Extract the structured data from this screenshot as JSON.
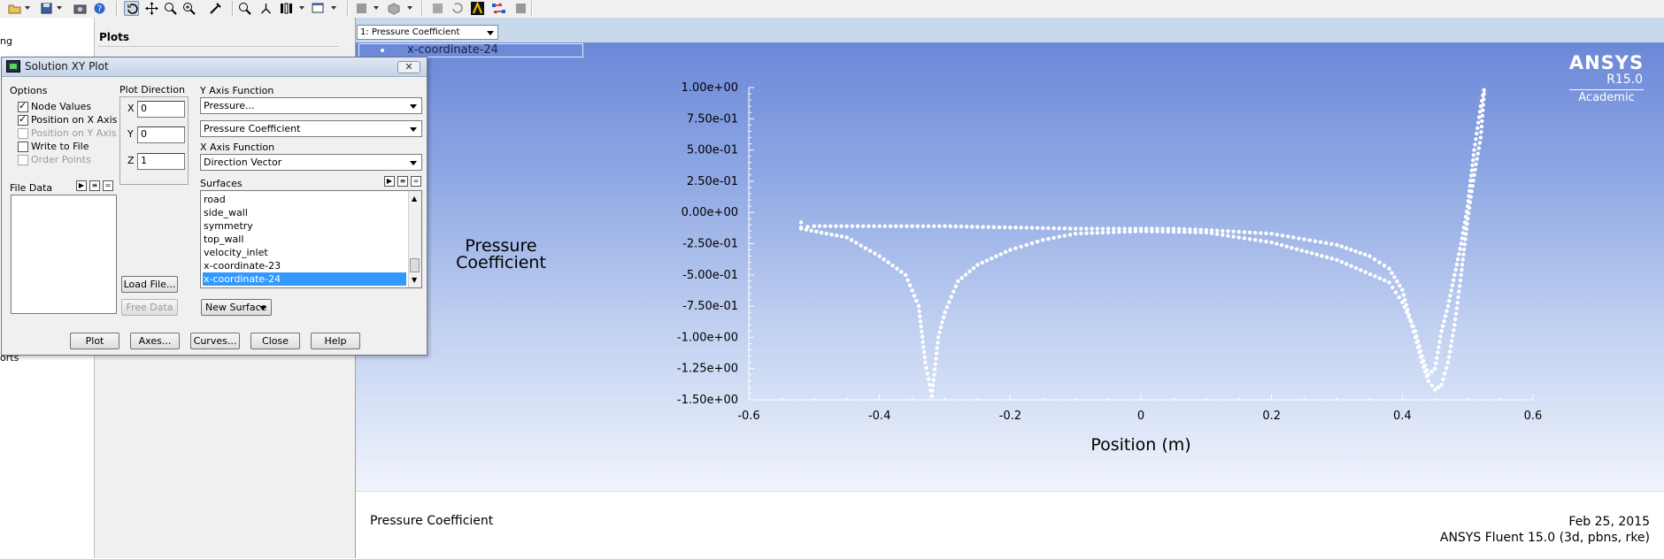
{
  "toolbar": {
    "icons": [
      "open-icon",
      "save-icon",
      "snapshot-icon",
      "help-icon",
      "rotate-icon",
      "translate-icon",
      "zoom-icon",
      "zoom-box-icon",
      "probe-icon",
      "zoom-fit-icon",
      "views-icon",
      "layout-icon",
      "window-icon",
      "mesh-display-icon",
      "surface-icon",
      "fluent-logo-icon",
      "sync-icon",
      "stop-icon"
    ]
  },
  "plots_panel": {
    "title": "Plots"
  },
  "left_strip": {
    "fragment_top": "ng",
    "fragment_bottom": "orts"
  },
  "graphics": {
    "window_selector": "1: Pressure Coefficient",
    "legend_label": "x-coordinate-24",
    "logo": {
      "brand": "ANSYS",
      "version": "R15.0",
      "edition": "Academic"
    },
    "footer_left": "Pressure Coefficient",
    "footer_date": "Feb 25, 2015",
    "footer_solver": "ANSYS Fluent 15.0 (3d, pbns, rke)"
  },
  "chart_data": {
    "type": "scatter",
    "xlabel": "Position (m)",
    "ylabel": "Pressure Coefficient",
    "xlim": [
      -0.6,
      0.6
    ],
    "ylim": [
      -1.5,
      1.0
    ],
    "x_ticks": [
      "-0.6",
      "-0.4",
      "-0.2",
      "0",
      "0.2",
      "0.4",
      "0.6"
    ],
    "y_ticks": [
      "1.00e+00",
      "7.50e-01",
      "5.00e-01",
      "2.50e-01",
      "0.00e+00",
      "-2.50e-01",
      "-5.00e-01",
      "-7.50e-01",
      "-1.00e+00",
      "-1.25e+00",
      "-1.50e+00"
    ],
    "series": [
      {
        "points": [
          [
            -0.52,
            -0.08
          ],
          [
            -0.52,
            -0.12
          ],
          [
            -0.5,
            -0.11
          ],
          [
            -0.45,
            -0.11
          ],
          [
            -0.4,
            -0.11
          ],
          [
            -0.35,
            -0.11
          ],
          [
            -0.3,
            -0.11
          ],
          [
            -0.2,
            -0.12
          ],
          [
            -0.1,
            -0.13
          ],
          [
            0,
            -0.13
          ],
          [
            0.05,
            -0.13
          ],
          [
            0.1,
            -0.14
          ],
          [
            0.2,
            -0.17
          ],
          [
            0.3,
            -0.26
          ],
          [
            0.35,
            -0.35
          ],
          [
            0.38,
            -0.45
          ],
          [
            0.4,
            -0.62
          ],
          [
            0.41,
            -0.82
          ],
          [
            0.42,
            -1.0
          ],
          [
            0.43,
            -1.2
          ],
          [
            0.44,
            -1.35
          ],
          [
            0.45,
            -1.42
          ],
          [
            0.46,
            -1.38
          ],
          [
            0.47,
            -1.2
          ],
          [
            0.48,
            -0.9
          ],
          [
            0.49,
            -0.5
          ],
          [
            0.5,
            -0.05
          ],
          [
            0.51,
            0.3
          ],
          [
            0.52,
            0.6
          ],
          [
            0.525,
            0.95
          ]
        ]
      },
      {
        "points": [
          [
            -0.52,
            -0.13
          ],
          [
            -0.45,
            -0.2
          ],
          [
            -0.4,
            -0.35
          ],
          [
            -0.36,
            -0.5
          ],
          [
            -0.34,
            -0.75
          ],
          [
            -0.33,
            -1.2
          ],
          [
            -0.32,
            -1.47
          ],
          [
            -0.31,
            -1.0
          ],
          [
            -0.3,
            -0.8
          ],
          [
            -0.28,
            -0.55
          ],
          [
            -0.25,
            -0.42
          ],
          [
            -0.2,
            -0.3
          ],
          [
            -0.15,
            -0.22
          ],
          [
            -0.1,
            -0.17
          ],
          [
            0,
            -0.15
          ],
          [
            0.1,
            -0.16
          ],
          [
            0.2,
            -0.24
          ],
          [
            0.3,
            -0.38
          ],
          [
            0.38,
            -0.56
          ],
          [
            0.4,
            -0.72
          ],
          [
            0.42,
            -0.95
          ],
          [
            0.43,
            -1.15
          ],
          [
            0.44,
            -1.3
          ],
          [
            0.45,
            -1.25
          ],
          [
            0.46,
            -0.95
          ],
          [
            0.47,
            -0.75
          ],
          [
            0.48,
            -0.5
          ],
          [
            0.49,
            -0.25
          ],
          [
            0.5,
            0.05
          ],
          [
            0.51,
            0.5
          ],
          [
            0.52,
            0.85
          ],
          [
            0.525,
            0.98
          ]
        ]
      }
    ]
  },
  "dialog": {
    "title": "Solution XY Plot",
    "options_label": "Options",
    "options": [
      {
        "label": "Node Values",
        "checked": true,
        "enabled": true
      },
      {
        "label": "Position on X Axis",
        "checked": true,
        "enabled": true
      },
      {
        "label": "Position on Y Axis",
        "checked": false,
        "enabled": false
      },
      {
        "label": "Write to File",
        "checked": false,
        "enabled": true
      },
      {
        "label": "Order Points",
        "checked": false,
        "enabled": false
      }
    ],
    "plot_direction_label": "Plot Direction",
    "direction": {
      "x_label": "X",
      "x": "0",
      "y_label": "Y",
      "y": "0",
      "z_label": "Z",
      "z": "1"
    },
    "file_data_label": "File Data",
    "y_axis_function_label": "Y Axis Function",
    "y_func_1": "Pressure...",
    "y_func_2": "Pressure Coefficient",
    "x_axis_function_label": "X Axis Function",
    "x_func": "Direction Vector",
    "surfaces_label": "Surfaces",
    "surfaces": [
      "road",
      "side_wall",
      "symmetry",
      "top_wall",
      "velocity_inlet",
      "x-coordinate-23",
      "x-coordinate-24"
    ],
    "selected_surface": "x-coordinate-24",
    "load_file": "Load File...",
    "free_data": "Free Data",
    "new_surface": "New Surface",
    "buttons": {
      "plot": "Plot",
      "axes": "Axes...",
      "curves": "Curves...",
      "close": "Close",
      "help": "Help"
    }
  }
}
